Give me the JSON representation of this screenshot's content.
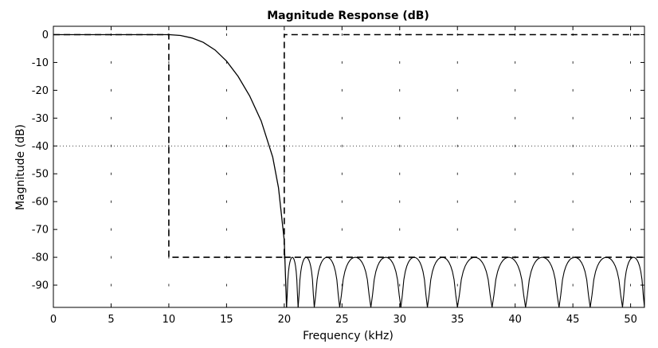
{
  "chart_data": {
    "type": "line",
    "title": "Magnitude Response (dB)",
    "xlabel": "Frequency (kHz)",
    "ylabel": "Magnitude (dB)",
    "xlim": [
      0,
      51.2
    ],
    "ylim": [
      -98,
      3
    ],
    "x_ticks": [
      0,
      5,
      10,
      15,
      20,
      25,
      30,
      35,
      40,
      45,
      50
    ],
    "y_ticks": [
      0,
      -10,
      -20,
      -30,
      -40,
      -50,
      -60,
      -70,
      -80,
      -90
    ],
    "grid": "dotted",
    "reference_line_y": -40,
    "series": [
      {
        "style": "dashed",
        "x": [
          0,
          10,
          10,
          20,
          20,
          51.2
        ],
        "y": [
          0,
          0,
          -80,
          -80,
          0,
          0
        ]
      },
      {
        "style": "dashed",
        "x": [
          20,
          51.2
        ],
        "y": [
          -80,
          -80
        ]
      },
      {
        "style": "solid",
        "x": [
          0,
          10,
          11,
          12,
          13,
          14,
          15,
          16,
          17,
          18,
          19,
          19.5,
          20,
          20.2
        ],
        "y": [
          0,
          0,
          -0.3,
          -1.2,
          -2.8,
          -5.5,
          -9.5,
          -15,
          -22,
          -31,
          -44,
          -55,
          -74,
          -98
        ],
        "stopband_nulls_x": [
          20.2,
          21.2,
          22.6,
          24.8,
          27.5,
          30.1,
          32.4,
          35.0,
          38.0,
          40.9,
          43.8,
          46.5,
          49.3,
          51.2
        ],
        "stopband_peak_db": -80
      }
    ],
    "colors": {
      "line": "#000000",
      "background": "#ffffff",
      "grid": "#000000"
    }
  }
}
